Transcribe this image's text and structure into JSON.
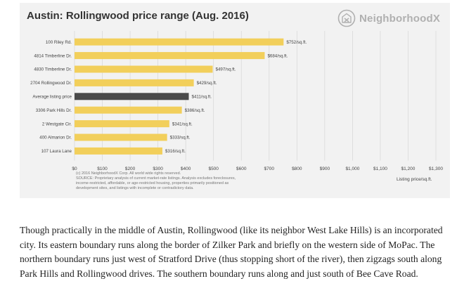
{
  "chart_title": "Austin: Rollingwood price range (Aug. 2016)",
  "brand": {
    "name": "NeighborhoodX",
    "logo_icon": "neighborhoodx-logo-icon"
  },
  "footnote": {
    "line1": "(c) 2016 NeighborhoodX Corp. All world wide rights reserved.",
    "line2": "SOURCE: Proprietary analysis of current market-rate listings. Analysis excludes foreclosures,",
    "line3": "income-restricted, affordable, or age-restricted housing, properties primarily positioned as",
    "line4": "development sites, and listings with incomplete or contradictory data."
  },
  "chart_data": {
    "type": "bar",
    "orientation": "horizontal",
    "title": "Austin: Rollingwood price range (Aug. 2016)",
    "xlabel": "Listing price/sq.ft.",
    "ylabel": "",
    "categories": [
      "100 Riley Rd.",
      "4814 Timberline Dr.",
      "4830 Timberline Dr.",
      "2704 Rollingwood Dr.",
      "Average listing price",
      "3306 Park Hills Dr.",
      "2 Westgate Cir.",
      "400 Almarion Dr.",
      "107 Laura Lane"
    ],
    "values": [
      752,
      684,
      497,
      429,
      411,
      386,
      341,
      333,
      316
    ],
    "value_labels": [
      "$752/sq.ft.",
      "$684/sq.ft.",
      "$497/sq.ft.",
      "$429/sq.ft.",
      "$411/sq.ft.",
      "$386/sq.ft.",
      "$341/sq.ft.",
      "$333/sq.ft.",
      "$316/sq.ft."
    ],
    "highlight_index": 4,
    "xlim": [
      0,
      1300
    ],
    "x_ticks": [
      0,
      100,
      200,
      300,
      400,
      500,
      600,
      700,
      800,
      900,
      1000,
      1100,
      1200,
      1300
    ],
    "x_tick_labels": [
      "$0",
      "$100",
      "$200",
      "$300",
      "$400",
      "$500",
      "$600",
      "$700",
      "$800",
      "$900",
      "$1,000",
      "$1,100",
      "$1,200",
      "$1,300"
    ],
    "colors": {
      "bar": "#f2cf5b",
      "highlight": "#4a4a4a",
      "grid": "#d6d6d6",
      "text": "#444444"
    },
    "grid": true,
    "legend": "none"
  },
  "article": {
    "paragraph": "Though practically in the middle of Austin, Rollingwood (like its neighbor West Lake Hills) is an incorporated city. Its eastern boundary runs along the border of Zilker Park and briefly on the western side of MoPac. The northern boundary runs just west of Stratford Drive (thus stopping short of the river), then zigzags south along Park Hills and Rollingwood drives. The southern boundary runs along and just south of Bee Cave Road."
  }
}
